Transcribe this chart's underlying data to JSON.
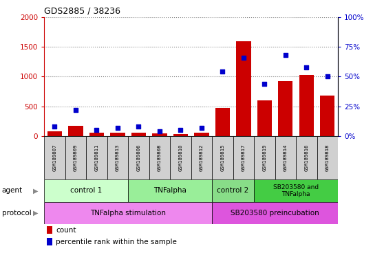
{
  "title": "GDS2885 / 38236",
  "samples": [
    "GSM189807",
    "GSM189809",
    "GSM189811",
    "GSM189813",
    "GSM189806",
    "GSM189808",
    "GSM189810",
    "GSM189812",
    "GSM189815",
    "GSM189817",
    "GSM189819",
    "GSM189814",
    "GSM189816",
    "GSM189818"
  ],
  "counts": [
    75,
    175,
    60,
    60,
    60,
    40,
    30,
    60,
    475,
    1600,
    600,
    925,
    1025,
    675
  ],
  "percentile_ranks": [
    8,
    22,
    5,
    7,
    8,
    4,
    5,
    7,
    54,
    66,
    44,
    68,
    58,
    50
  ],
  "ylim_left": [
    0,
    2000
  ],
  "ylim_right": [
    0,
    100
  ],
  "yticks_left": [
    0,
    500,
    1000,
    1500,
    2000
  ],
  "yticks_right": [
    0,
    25,
    50,
    75,
    100
  ],
  "ytick_labels_left": [
    "0",
    "500",
    "1000",
    "1500",
    "2000"
  ],
  "ytick_labels_right": [
    "0%",
    "25%",
    "50%",
    "75%",
    "100%"
  ],
  "bar_color": "#cc0000",
  "dot_color": "#0000cc",
  "agent_groups": [
    {
      "label": "control 1",
      "start": 0,
      "end": 4,
      "color": "#ccffcc"
    },
    {
      "label": "TNFalpha",
      "start": 4,
      "end": 8,
      "color": "#99ee99"
    },
    {
      "label": "control 2",
      "start": 8,
      "end": 10,
      "color": "#88dd88"
    },
    {
      "label": "SB203580 and\nTNFalpha",
      "start": 10,
      "end": 14,
      "color": "#44cc44"
    }
  ],
  "protocol_groups": [
    {
      "label": "TNFalpha stimulation",
      "start": 0,
      "end": 8,
      "color": "#ee88ee"
    },
    {
      "label": "SB203580 preincubation",
      "start": 8,
      "end": 14,
      "color": "#dd55dd"
    }
  ],
  "left_axis_color": "#cc0000",
  "right_axis_color": "#0000cc",
  "grid_color": "#888888",
  "sample_box_color": "#d0d0d0",
  "border_color": "#000000",
  "fig_width": 5.58,
  "fig_height": 3.84,
  "dpi": 100
}
